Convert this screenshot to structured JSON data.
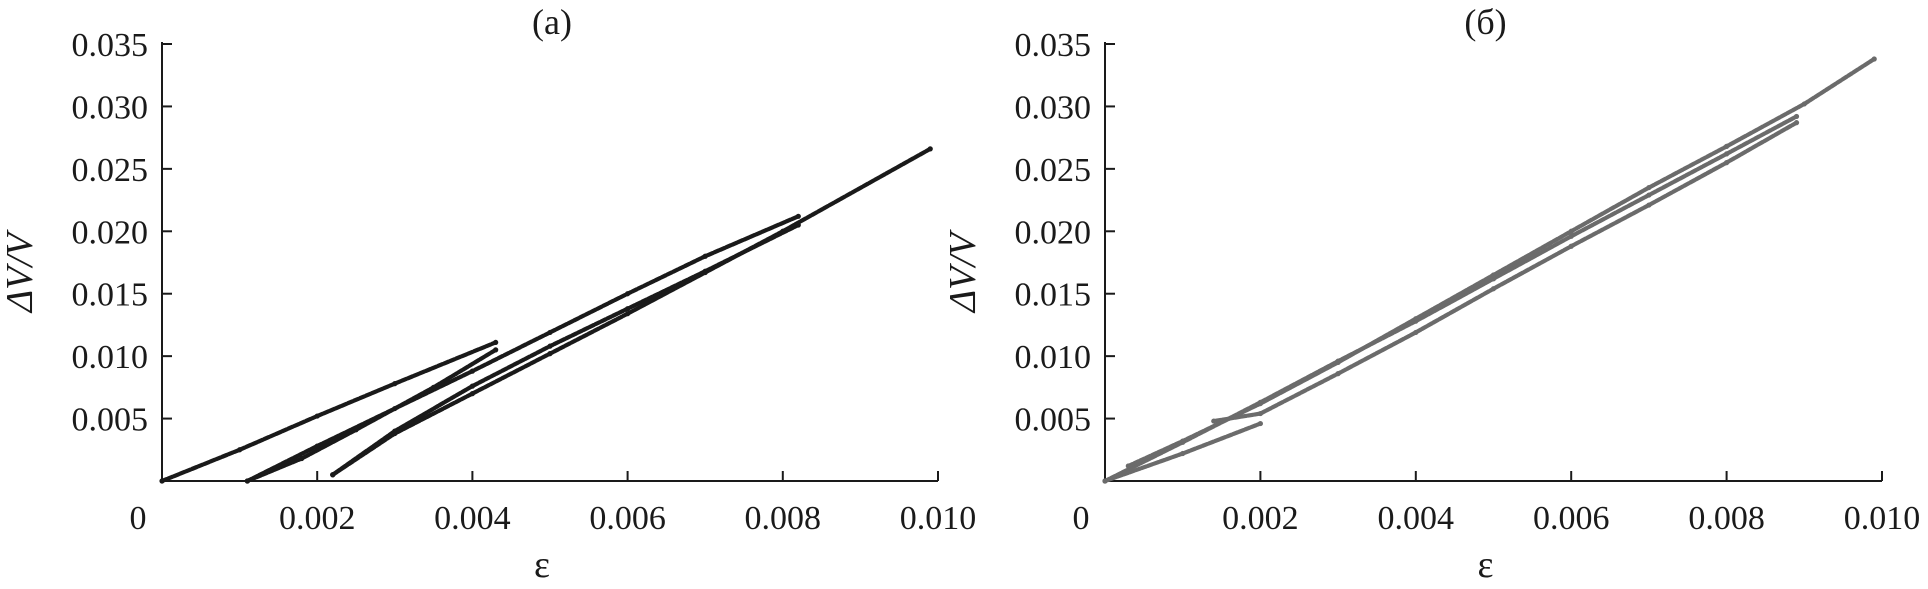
{
  "chart_data": [
    {
      "type": "scatter",
      "title": "(a)",
      "xlabel": "ε",
      "ylabel": "ΔV/V",
      "xlim": [
        0,
        0.01
      ],
      "ylim": [
        0,
        0.035
      ],
      "x_ticks": [
        "0",
        "0.002",
        "0.004",
        "0.006",
        "0.008",
        "0.010"
      ],
      "y_ticks": [
        "",
        "0.005",
        "0.010",
        "0.015",
        "0.020",
        "0.025",
        "0.030",
        "0.035"
      ],
      "color": "#1a1a1a",
      "grid": false,
      "series": [
        {
          "x": [
            0.0,
            0.001,
            0.002,
            0.003,
            0.0043
          ],
          "y": [
            0.0,
            0.0025,
            0.0052,
            0.0078,
            0.0111
          ]
        },
        {
          "x": [
            0.0043,
            0.0035,
            0.0025,
            0.0018,
            0.0011
          ],
          "y": [
            0.0105,
            0.0075,
            0.0041,
            0.0018,
            0.0
          ]
        },
        {
          "x": [
            0.0011,
            0.002,
            0.003,
            0.004,
            0.005,
            0.006,
            0.007,
            0.0082
          ],
          "y": [
            0.0,
            0.0028,
            0.0058,
            0.0088,
            0.0119,
            0.015,
            0.018,
            0.0212
          ]
        },
        {
          "x": [
            0.0082,
            0.007,
            0.006,
            0.005,
            0.004,
            0.003,
            0.0022
          ],
          "y": [
            0.0205,
            0.0168,
            0.0138,
            0.0108,
            0.0076,
            0.004,
            0.0005
          ]
        },
        {
          "x": [
            0.0022,
            0.003,
            0.004,
            0.005,
            0.006,
            0.007,
            0.008,
            0.0099
          ],
          "y": [
            0.0005,
            0.0038,
            0.007,
            0.0102,
            0.0134,
            0.0167,
            0.02,
            0.0266
          ]
        }
      ]
    },
    {
      "type": "scatter",
      "title": "(б)",
      "xlabel": "ε",
      "ylabel": "ΔV/V",
      "xlim": [
        0,
        0.01
      ],
      "ylim": [
        0,
        0.035
      ],
      "x_ticks": [
        "0",
        "0.002",
        "0.004",
        "0.006",
        "0.008",
        "0.010"
      ],
      "y_ticks": [
        "",
        "0.005",
        "0.010",
        "0.015",
        "0.020",
        "0.025",
        "0.030",
        "0.035"
      ],
      "color": "#6b6b6b",
      "grid": false,
      "series": [
        {
          "x": [
            0.0,
            0.001,
            0.002,
            0.003,
            0.004,
            0.005,
            0.006,
            0.007,
            0.008,
            0.0089
          ],
          "y": [
            0.0,
            0.0031,
            0.0063,
            0.0096,
            0.0128,
            0.0162,
            0.0196,
            0.0229,
            0.0262,
            0.0292
          ]
        },
        {
          "x": [
            0.0089,
            0.008,
            0.007,
            0.006,
            0.005,
            0.004,
            0.003,
            0.002,
            0.0014
          ],
          "y": [
            0.0287,
            0.0255,
            0.0221,
            0.0188,
            0.0154,
            0.0119,
            0.0086,
            0.0054,
            0.0048
          ]
        },
        {
          "x": [
            0.0003,
            0.001,
            0.002,
            0.003,
            0.004,
            0.005,
            0.006,
            0.007,
            0.008,
            0.009,
            0.0099
          ],
          "y": [
            0.0012,
            0.0032,
            0.0062,
            0.0095,
            0.013,
            0.0165,
            0.02,
            0.0235,
            0.0268,
            0.0302,
            0.0338
          ]
        },
        {
          "x": [
            0.0,
            0.001,
            0.002
          ],
          "y": [
            0.0,
            0.0022,
            0.0046
          ]
        }
      ]
    }
  ]
}
